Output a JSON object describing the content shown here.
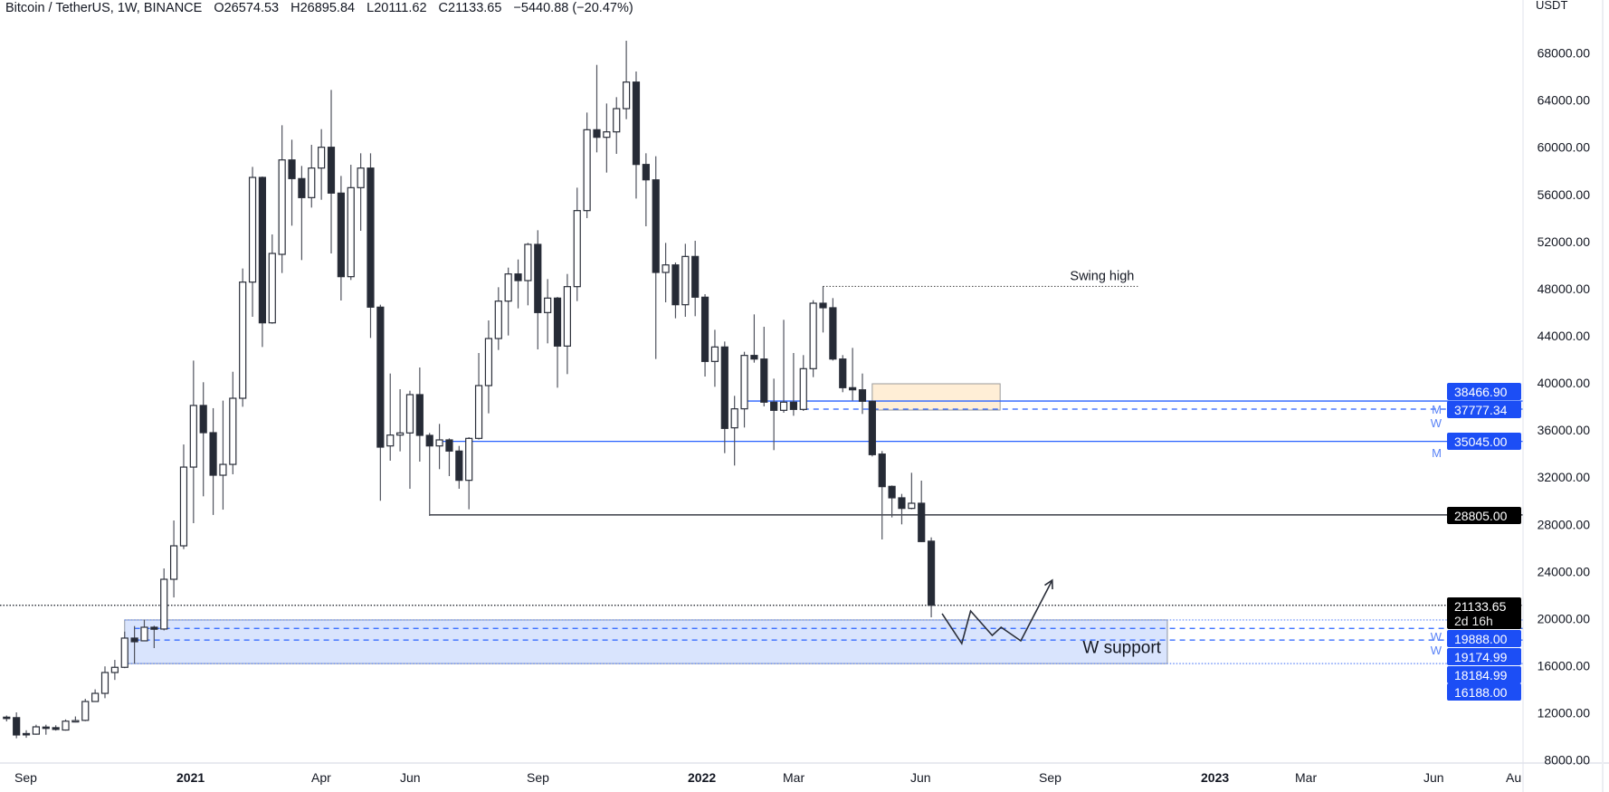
{
  "header": {
    "symbol": "Bitcoin / TetherUS, 1W, BINANCE",
    "open": "O26574.53",
    "high": "H26895.84",
    "low": "L20111.62",
    "close": "C21133.65",
    "change": "−5440.88 (−20.47%)"
  },
  "colors": {
    "bull_body": "#ffffff",
    "candle_outline": "#2a2e39",
    "bear_body": "#262b36",
    "wick": "#50535e",
    "level_blue": "#2962ff",
    "tag_blue": "#1c4ef5",
    "tag_black": "#000000",
    "support_fill": "#d9e4fd",
    "supply_fill": "#ffeed6"
  },
  "chart_data": {
    "type": "candlestick",
    "title": "Bitcoin / TetherUS, 1W, BINANCE",
    "interval": "1W",
    "start_week": "2020-08-24",
    "candle_fields": [
      "open",
      "high",
      "low",
      "close"
    ],
    "candles": [
      [
        11640,
        11780,
        11280,
        11590
      ],
      [
        11600,
        12050,
        9850,
        10130
      ],
      [
        10250,
        10530,
        9890,
        10200
      ],
      [
        10200,
        11000,
        10150,
        10820
      ],
      [
        10800,
        11000,
        10150,
        10750
      ],
      [
        10750,
        10950,
        10500,
        10600
      ],
      [
        10550,
        11450,
        10500,
        11300
      ],
      [
        11300,
        11700,
        11200,
        11350
      ],
      [
        11370,
        13200,
        11300,
        12970
      ],
      [
        12970,
        14000,
        12950,
        13660
      ],
      [
        13660,
        15950,
        13250,
        15430
      ],
      [
        15430,
        16500,
        14800,
        15870
      ],
      [
        15870,
        18900,
        15800,
        18350
      ],
      [
        18350,
        19370,
        16200,
        18040
      ],
      [
        18120,
        19900,
        18100,
        19270
      ],
      [
        19270,
        19400,
        17500,
        19100
      ],
      [
        19120,
        24260,
        19000,
        23340
      ],
      [
        23340,
        28330,
        21800,
        26180
      ],
      [
        26180,
        34780,
        25900,
        32860
      ],
      [
        32860,
        41900,
        28100,
        38090
      ],
      [
        38090,
        40060,
        30380,
        35780
      ],
      [
        35780,
        37860,
        28800,
        32170
      ],
      [
        32170,
        38500,
        29250,
        33090
      ],
      [
        33090,
        40950,
        32250,
        38700
      ],
      [
        38700,
        49709,
        37985,
        48557
      ],
      [
        48557,
        58336,
        45613,
        57440
      ],
      [
        57440,
        57517,
        43053,
        45101
      ],
      [
        45101,
        52602,
        45024,
        50989
      ],
      [
        50912,
        61869,
        49325,
        58925
      ],
      [
        58925,
        60640,
        53344,
        57338
      ],
      [
        57338,
        58413,
        50426,
        55725
      ],
      [
        55725,
        60205,
        54880,
        58234
      ],
      [
        58234,
        61536,
        55546,
        60000
      ],
      [
        60000,
        64864,
        50989,
        56109
      ],
      [
        56109,
        57568,
        46995,
        49018
      ],
      [
        49018,
        58515,
        48736,
        56570
      ],
      [
        56570,
        59488,
        52909,
        58234
      ],
      [
        58234,
        59488,
        43821,
        46432
      ],
      [
        46432,
        46637,
        30000,
        34554
      ],
      [
        34656,
        40800,
        33402,
        35578
      ],
      [
        35578,
        39469,
        34195,
        35757
      ],
      [
        35757,
        39341,
        31021,
        39008
      ],
      [
        39008,
        41312,
        33325,
        35552
      ],
      [
        35552,
        35757,
        28717,
        34656
      ],
      [
        34656,
        36525,
        32685,
        35168
      ],
      [
        35168,
        35300,
        32096,
        34221
      ],
      [
        34221,
        34656,
        31021,
        31738
      ],
      [
        31738,
        35400,
        29280,
        35296
      ],
      [
        35296,
        42541,
        35200,
        39776
      ],
      [
        39776,
        45306,
        37421,
        43770
      ],
      [
        43770,
        48122,
        42797,
        46944
      ],
      [
        46944,
        49786,
        44026,
        49248
      ],
      [
        49248,
        50477,
        46330,
        48685
      ],
      [
        48685,
        51885,
        46586,
        51757
      ],
      [
        51757,
        52960,
        42848,
        45971
      ],
      [
        45971,
        48813,
        43360,
        47200
      ],
      [
        47200,
        47300,
        39597,
        43130
      ],
      [
        43130,
        49248,
        40749,
        48173
      ],
      [
        48173,
        56570,
        46944,
        54624
      ],
      [
        54624,
        62944,
        53984,
        61485
      ],
      [
        61485,
        66989,
        59565,
        60845
      ],
      [
        60845,
        63712,
        57850,
        61306
      ],
      [
        61306,
        64250,
        59437,
        63277
      ],
      [
        63277,
        69037,
        62381,
        65530
      ],
      [
        65530,
        66426,
        55648,
        58541
      ],
      [
        58541,
        59488,
        53293,
        57235
      ],
      [
        57235,
        59232,
        42029,
        49376
      ],
      [
        49376,
        51885,
        46842,
        50016
      ],
      [
        50016,
        50221,
        45485,
        46637
      ],
      [
        46637,
        51808,
        45613,
        50733
      ],
      [
        50733,
        52064,
        45664,
        47277
      ],
      [
        47277,
        47533,
        40544,
        41824
      ],
      [
        41824,
        44512,
        39674,
        43053
      ],
      [
        43053,
        43514,
        34042,
        36141
      ],
      [
        36192,
        38906,
        32992,
        37805
      ],
      [
        37805,
        42643,
        36218,
        42336
      ],
      [
        42336,
        45818,
        41722,
        42029
      ],
      [
        42029,
        44768,
        38010,
        38368
      ],
      [
        38368,
        40365,
        34298,
        37677
      ],
      [
        37677,
        45357,
        37472,
        38368
      ],
      [
        38368,
        42541,
        37216,
        37754
      ],
      [
        37754,
        42362,
        37626,
        41210
      ],
      [
        41210,
        47021,
        40493,
        46765
      ],
      [
        46765,
        48224,
        44282,
        46381
      ],
      [
        46381,
        47200,
        41901,
        42029
      ],
      [
        42029,
        42362,
        39213,
        39597
      ],
      [
        39597,
        42976,
        38496,
        39418
      ],
      [
        39418,
        40800,
        37370,
        38445
      ],
      [
        38445,
        38500,
        33760,
        33914
      ],
      [
        33965,
        34221,
        26720,
        31200
      ],
      [
        31226,
        31300,
        28589,
        30253
      ],
      [
        30253,
        30586,
        28000,
        29357
      ],
      [
        29357,
        32378,
        29280,
        29792
      ],
      [
        29792,
        31712,
        26500,
        26541
      ],
      [
        26574.53,
        26895.84,
        20111.62,
        21133.65
      ]
    ],
    "y_axis": {
      "unit": "USDT",
      "range": [
        8000,
        70000
      ],
      "ticks": [
        "68000.00",
        "64000.00",
        "60000.00",
        "56000.00",
        "52000.00",
        "48000.00",
        "44000.00",
        "40000.00",
        "36000.00",
        "32000.00",
        "28000.00",
        "24000.00",
        "20000.00",
        "16000.00",
        "12000.00",
        "8000.00"
      ]
    },
    "x_axis": {
      "ticks": [
        "Sep",
        "2021",
        "Apr",
        "Jun",
        "Sep",
        "2022",
        "Mar",
        "Jun",
        "Sep",
        "2023",
        "Mar",
        "Jun",
        "Au"
      ],
      "bold_ticks": [
        "2021",
        "2022",
        "2023"
      ]
    },
    "levels": [
      {
        "price": 38466.9,
        "style": "solid",
        "color": "#2962ff",
        "from_week": 75
      },
      {
        "price": 37777.34,
        "style": "dashed",
        "color": "#2962ff",
        "from_week": 81
      },
      {
        "price": 35045.0,
        "style": "solid",
        "color": "#2962ff",
        "from_week": 44
      },
      {
        "price": 28805.0,
        "style": "solid",
        "color": "#131722",
        "from_week": 43
      },
      {
        "price": 19888.0,
        "style": "dotted",
        "color": "#5b84f7",
        "from_week": 12
      },
      {
        "price": 19174.99,
        "style": "dashed",
        "color": "#2962ff",
        "from_week": 13
      },
      {
        "price": 18184.99,
        "style": "dashed",
        "color": "#2962ff",
        "from_week": 13
      },
      {
        "price": 16188.0,
        "style": "dotted",
        "color": "#5b84f7",
        "from_week": 12
      },
      {
        "price": 21133.65,
        "style": "dotted",
        "color": "#131722",
        "from_week": 0
      }
    ],
    "level_side_labels": [
      {
        "text": "M",
        "price": 37777.34
      },
      {
        "text": "W",
        "price": 37300
      },
      {
        "text": "M",
        "price": 34100
      },
      {
        "text": "W",
        "price": 18500
      },
      {
        "text": "W",
        "price": 17500
      }
    ],
    "swing_high": {
      "label": "Swing high",
      "price": 48190,
      "from_week": 83,
      "to_week": 115
    },
    "supply_zone": {
      "top": 39930,
      "bottom": 37700,
      "from_week": 88,
      "to_week": 101
    },
    "support_zone": {
      "label": "W support",
      "top": 19888,
      "bottom": 16188,
      "from_week": 12,
      "to_week": 118
    },
    "projection_path": [
      [
        95.1,
        20422
      ],
      [
        97.1,
        17888
      ],
      [
        98.0,
        20653
      ],
      [
        100.2,
        18579
      ],
      [
        101.1,
        19270
      ],
      [
        103.1,
        18118
      ],
      [
        106.3,
        23264
      ]
    ],
    "price_tags": [
      {
        "text": "38466.90",
        "bg": "#1c4ef5"
      },
      {
        "text": "37777.34",
        "bg": "#1c4ef5"
      },
      {
        "text": "35045.00",
        "bg": "#1c4ef5"
      },
      {
        "text": "28805.00",
        "bg": "#000000"
      },
      {
        "text": "21133.65",
        "sub": "2d 16h",
        "bg": "#000000"
      },
      {
        "text": "19888.00",
        "bg": "#1c4ef5"
      },
      {
        "text": "19174.99",
        "bg": "#1c4ef5"
      },
      {
        "text": "18184.99",
        "bg": "#1c4ef5"
      },
      {
        "text": "16188.00",
        "bg": "#1c4ef5"
      }
    ]
  }
}
